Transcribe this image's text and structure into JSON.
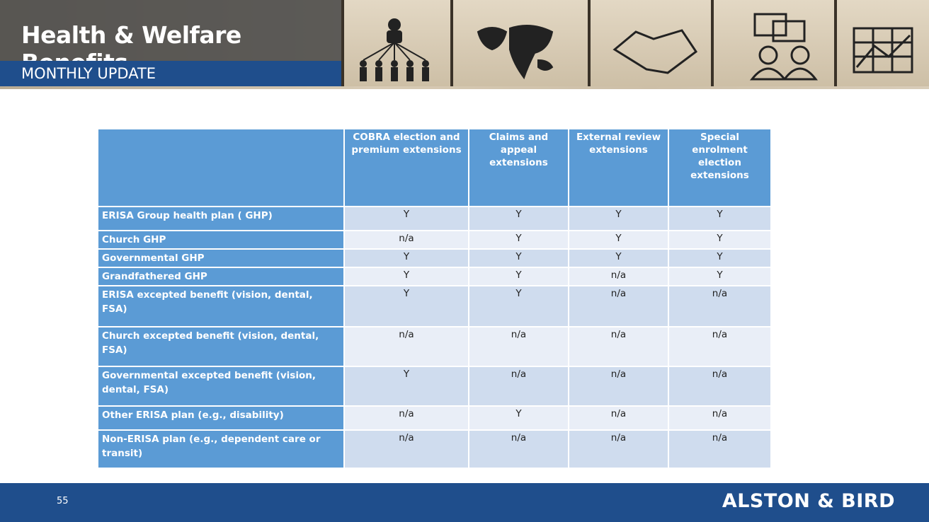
{
  "header": {
    "title": "Health & Welfare Benefits",
    "subtitle": "MONTHLY UPDATE"
  },
  "table": {
    "columns": [
      "COBRA election and premium extensions",
      "Claims and appeal extensions",
      "External review extensions",
      "Special enrolment election extensions"
    ],
    "rows": [
      {
        "label": "ERISA Group health plan ( GHP)",
        "cells": [
          "Y",
          "Y",
          "Y",
          "Y"
        ]
      },
      {
        "label": "Church GHP",
        "cells": [
          "n/a",
          "Y",
          "Y",
          "Y"
        ]
      },
      {
        "label": "Governmental GHP",
        "cells": [
          "Y",
          "Y",
          "Y",
          "Y"
        ]
      },
      {
        "label": "Grandfathered GHP",
        "cells": [
          "Y",
          "Y",
          "n/a",
          "Y"
        ]
      },
      {
        "label": "ERISA excepted benefit (vision, dental, FSA)",
        "cells": [
          "Y",
          "Y",
          "n/a",
          "n/a"
        ]
      },
      {
        "label": "Church excepted benefit (vision, dental, FSA)",
        "cells": [
          "n/a",
          "n/a",
          "n/a",
          "n/a"
        ]
      },
      {
        "label": "Governmental excepted benefit (vision, dental, FSA)",
        "cells": [
          "Y",
          "n/a",
          "n/a",
          "n/a"
        ]
      },
      {
        "label": "Other ERISA plan (e.g., disability)",
        "cells": [
          "n/a",
          "Y",
          "n/a",
          "n/a"
        ]
      },
      {
        "label": "Non-ERISA plan (e.g., dependent care or transit)",
        "cells": [
          "n/a",
          "n/a",
          "n/a",
          "n/a"
        ]
      }
    ]
  },
  "footer": {
    "page_number": "55",
    "logo": "ALSTON & BIRD"
  }
}
